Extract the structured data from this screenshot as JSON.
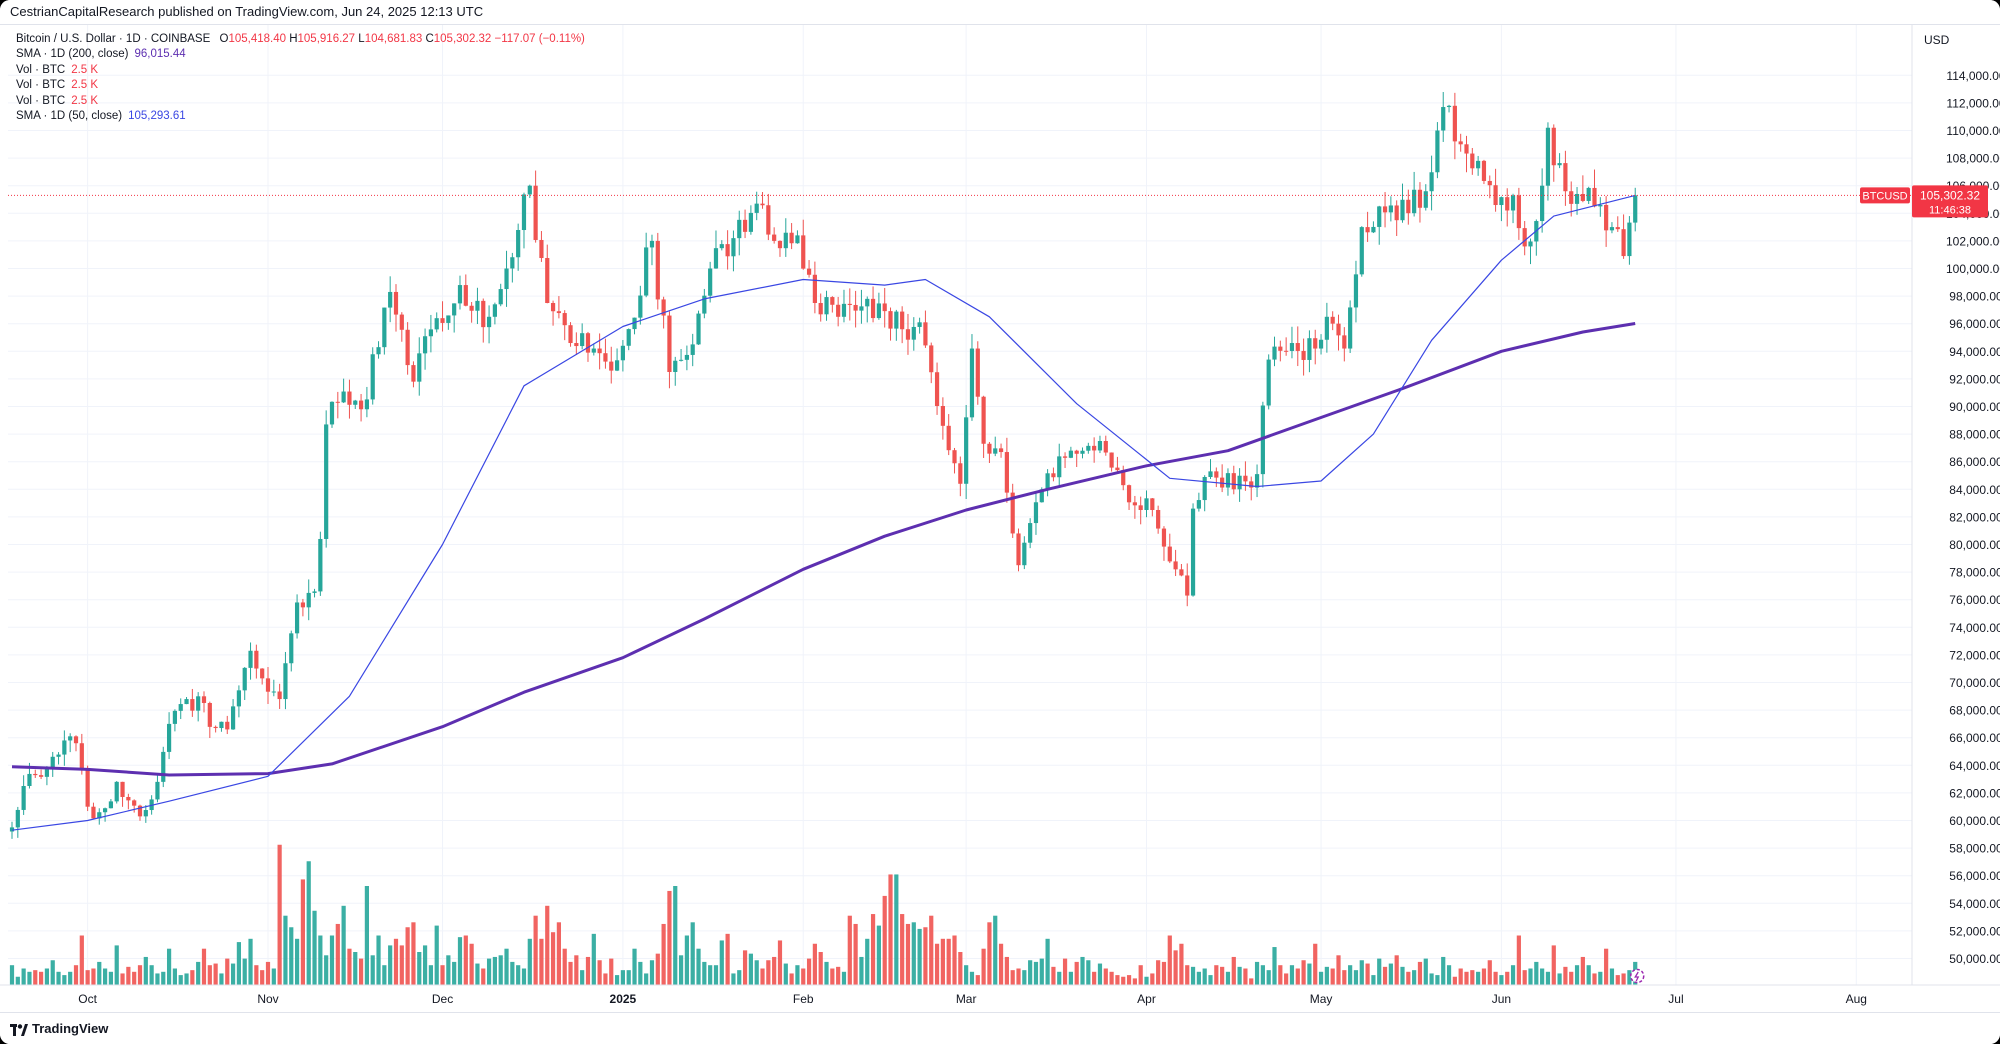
{
  "header": {
    "published": "CestrianCapitalResearch published on TradingView.com, Jun 24, 2025 12:13 UTC"
  },
  "legend": {
    "symbol_line": "Bitcoin / U.S. Dollar · 1D · COINBASE",
    "ohlc": {
      "o_label": "O",
      "o": "105,418.40",
      "h_label": "H",
      "h": "105,916.27",
      "l_label": "L",
      "l": "104,681.83",
      "c_label": "C",
      "c": "105,302.32",
      "change": "−117.07 (−0.11%)"
    },
    "sma200": {
      "label": "SMA · 1D (200, close)",
      "value": "96,015.44"
    },
    "vol_rows": [
      {
        "label": "Vol · BTC",
        "value": "2.5 K"
      },
      {
        "label": "Vol · BTC",
        "value": "2.5 K"
      },
      {
        "label": "Vol · BTC",
        "value": "2.5 K"
      }
    ],
    "sma50": {
      "label": "SMA · 1D (50, close)",
      "value": "105,293.61"
    }
  },
  "price_axis": {
    "currency": "USD",
    "last_symbol": "BTCUSD",
    "last_price": "105,302.32",
    "countdown": "11:46:38"
  },
  "footer": {
    "brand": "TradingView"
  },
  "colors": {
    "up": "#26a69a",
    "down": "#ef5350",
    "sma200": "#5d2fb0",
    "sma50": "#3a47e3",
    "grid": "#f0f3fa",
    "price_line": "#f23645"
  },
  "chart_data": {
    "type": "candlestick",
    "interval": "1D",
    "y_unit": "USD",
    "ylim": [
      48000,
      116000
    ],
    "y_ticks": [
      "50,000.00",
      "52,000.00",
      "54,000.00",
      "56,000.00",
      "58,000.00",
      "60,000.00",
      "62,000.00",
      "64,000.00",
      "66,000.00",
      "68,000.00",
      "70,000.00",
      "72,000.00",
      "74,000.00",
      "76,000.00",
      "78,000.00",
      "80,000.00",
      "82,000.00",
      "84,000.00",
      "86,000.00",
      "88,000.00",
      "90,000.00",
      "92,000.00",
      "94,000.00",
      "96,000.00",
      "98,000.00",
      "100,000.00",
      "102,000.00",
      "104,000.00",
      "106,000.00",
      "108,000.00",
      "110,000.00",
      "112,000.00",
      "114,000.00"
    ],
    "x_ticks": [
      {
        "label": "Oct",
        "date": "2024-10-01"
      },
      {
        "label": "Nov",
        "date": "2024-11-01"
      },
      {
        "label": "Dec",
        "date": "2024-12-01"
      },
      {
        "label": "2025",
        "date": "2025-01-01",
        "bold": true
      },
      {
        "label": "Feb",
        "date": "2025-02-01"
      },
      {
        "label": "Mar",
        "date": "2025-03-01"
      },
      {
        "label": "Apr",
        "date": "2025-04-01"
      },
      {
        "label": "May",
        "date": "2025-05-01"
      },
      {
        "label": "Jun",
        "date": "2025-06-01"
      },
      {
        "label": "Jul",
        "date": "2025-07-01"
      },
      {
        "label": "Aug",
        "date": "2025-08-01"
      }
    ],
    "start_date": "2024-09-18",
    "last_price": 105302.32,
    "close_path": [
      [
        "2024-09-18",
        59500
      ],
      [
        "2024-09-20",
        62500
      ],
      [
        "2024-09-24",
        63800
      ],
      [
        "2024-09-27",
        65800
      ],
      [
        "2024-09-29",
        65600
      ],
      [
        "2024-10-01",
        61000
      ],
      [
        "2024-10-03",
        60600
      ],
      [
        "2024-10-06",
        62800
      ],
      [
        "2024-10-10",
        60300
      ],
      [
        "2024-10-13",
        62800
      ],
      [
        "2024-10-15",
        67000
      ],
      [
        "2024-10-20",
        69000
      ],
      [
        "2024-10-23",
        66700
      ],
      [
        "2024-10-25",
        66600
      ],
      [
        "2024-10-29",
        72300
      ],
      [
        "2024-10-31",
        70300
      ],
      [
        "2024-11-03",
        68800
      ],
      [
        "2024-11-06",
        75800
      ],
      [
        "2024-11-09",
        76600
      ],
      [
        "2024-11-10",
        80400
      ],
      [
        "2024-11-11",
        88700
      ],
      [
        "2024-11-13",
        90300
      ],
      [
        "2024-11-17",
        89800
      ],
      [
        "2024-11-20",
        94300
      ],
      [
        "2024-11-22",
        98300
      ],
      [
        "2024-11-25",
        93000
      ],
      [
        "2024-11-26",
        91800
      ],
      [
        "2024-11-30",
        96400
      ],
      [
        "2024-12-04",
        98800
      ],
      [
        "2024-12-05",
        97300
      ],
      [
        "2024-12-09",
        96500
      ],
      [
        "2024-12-12",
        100000
      ],
      [
        "2024-12-16",
        106000
      ],
      [
        "2024-12-19",
        97500
      ],
      [
        "2024-12-23",
        94600
      ],
      [
        "2024-12-27",
        94200
      ],
      [
        "2024-12-30",
        92600
      ],
      [
        "2025-01-01",
        94400
      ],
      [
        "2025-01-06",
        102000
      ],
      [
        "2025-01-09",
        92500
      ],
      [
        "2025-01-13",
        94500
      ],
      [
        "2025-01-16",
        100000
      ],
      [
        "2025-01-20",
        102200
      ],
      [
        "2025-01-24",
        104700
      ],
      [
        "2025-01-27",
        102000
      ],
      [
        "2025-01-31",
        102400
      ],
      [
        "2025-02-03",
        97500
      ],
      [
        "2025-02-07",
        96500
      ],
      [
        "2025-02-12",
        97800
      ],
      [
        "2025-02-18",
        95600
      ],
      [
        "2025-02-21",
        96100
      ],
      [
        "2025-02-25",
        88600
      ],
      [
        "2025-02-28",
        84400
      ],
      [
        "2025-03-02",
        94200
      ],
      [
        "2025-03-04",
        87300
      ],
      [
        "2025-03-07",
        86700
      ],
      [
        "2025-03-10",
        78500
      ],
      [
        "2025-03-14",
        84000
      ],
      [
        "2025-03-19",
        86800
      ],
      [
        "2025-03-24",
        87500
      ],
      [
        "2025-03-28",
        84300
      ],
      [
        "2025-03-31",
        82500
      ],
      [
        "2025-04-02",
        82500
      ],
      [
        "2025-04-06",
        78200
      ],
      [
        "2025-04-08",
        76300
      ],
      [
        "2025-04-09",
        82600
      ],
      [
        "2025-04-12",
        85300
      ],
      [
        "2025-04-16",
        84000
      ],
      [
        "2025-04-20",
        85100
      ],
      [
        "2025-04-22",
        93400
      ],
      [
        "2025-04-26",
        94600
      ],
      [
        "2025-04-30",
        94200
      ],
      [
        "2025-05-02",
        96500
      ],
      [
        "2025-05-05",
        94200
      ],
      [
        "2025-05-08",
        103000
      ],
      [
        "2025-05-11",
        104500
      ],
      [
        "2025-05-14",
        103500
      ],
      [
        "2025-05-19",
        105600
      ],
      [
        "2025-05-21",
        110000
      ],
      [
        "2025-05-22",
        111700
      ],
      [
        "2025-05-25",
        109000
      ],
      [
        "2025-05-28",
        107800
      ],
      [
        "2025-05-31",
        104600
      ],
      [
        "2025-06-03",
        105300
      ],
      [
        "2025-06-05",
        101600
      ],
      [
        "2025-06-08",
        106000
      ],
      [
        "2025-06-09",
        110200
      ],
      [
        "2025-06-12",
        105600
      ],
      [
        "2025-06-14",
        105400
      ],
      [
        "2025-06-17",
        104500
      ],
      [
        "2025-06-20",
        103000
      ],
      [
        "2025-06-22",
        100900
      ],
      [
        "2025-06-24",
        105302
      ]
    ],
    "sma200_path": [
      [
        "2024-09-18",
        63900
      ],
      [
        "2024-10-01",
        63700
      ],
      [
        "2024-10-15",
        63300
      ],
      [
        "2024-11-01",
        63400
      ],
      [
        "2024-11-12",
        64100
      ],
      [
        "2024-12-01",
        66800
      ],
      [
        "2024-12-15",
        69300
      ],
      [
        "2025-01-01",
        71800
      ],
      [
        "2025-01-15",
        74600
      ],
      [
        "2025-02-01",
        78200
      ],
      [
        "2025-02-15",
        80600
      ],
      [
        "2025-03-01",
        82500
      ],
      [
        "2025-03-15",
        84000
      ],
      [
        "2025-04-01",
        85700
      ],
      [
        "2025-04-15",
        86800
      ],
      [
        "2025-05-01",
        89200
      ],
      [
        "2025-05-15",
        91300
      ],
      [
        "2025-06-01",
        94000
      ],
      [
        "2025-06-15",
        95400
      ],
      [
        "2025-06-24",
        96015
      ]
    ],
    "sma50_path": [
      [
        "2024-09-18",
        59300
      ],
      [
        "2024-10-01",
        60000
      ],
      [
        "2024-10-15",
        61400
      ],
      [
        "2024-11-01",
        63200
      ],
      [
        "2024-11-15",
        69000
      ],
      [
        "2024-12-01",
        80000
      ],
      [
        "2024-12-15",
        91500
      ],
      [
        "2025-01-01",
        95800
      ],
      [
        "2025-01-15",
        97800
      ],
      [
        "2025-02-01",
        99200
      ],
      [
        "2025-02-15",
        98800
      ],
      [
        "2025-02-22",
        99200
      ],
      [
        "2025-03-05",
        96500
      ],
      [
        "2025-03-20",
        90200
      ],
      [
        "2025-04-05",
        84800
      ],
      [
        "2025-04-20",
        84200
      ],
      [
        "2025-05-01",
        84600
      ],
      [
        "2025-05-10",
        88000
      ],
      [
        "2025-05-20",
        94800
      ],
      [
        "2025-06-01",
        100600
      ],
      [
        "2025-06-10",
        103800
      ],
      [
        "2025-06-24",
        105294
      ]
    ],
    "volume": {
      "scale_max": 5000,
      "levels_pct_of_max": [
        12,
        5,
        10,
        8,
        9,
        8,
        10,
        15,
        8,
        6,
        8,
        12,
        30,
        9,
        10,
        14,
        10,
        8,
        24,
        7,
        11,
        8,
        12,
        17,
        12,
        7,
        8,
        22,
        10,
        6,
        7,
        9,
        14,
        22,
        12,
        13,
        7,
        16,
        13,
        26,
        16,
        28,
        12,
        9,
        14,
        10,
        85,
        42,
        35,
        28,
        64,
        75,
        45,
        30,
        18,
        30,
        37,
        48,
        22,
        20,
        16,
        60,
        18,
        30,
        12,
        24,
        28,
        24,
        35,
        38,
        20,
        24,
        12,
        36,
        12,
        18,
        14,
        29,
        30,
        25,
        13,
        10,
        16,
        17,
        18,
        22,
        14,
        12,
        10,
        28,
        42,
        28,
        48,
        32,
        38,
        22,
        14,
        18,
        9,
        17,
        31,
        15,
        7,
        16,
        6,
        9,
        9,
        22,
        14,
        7,
        15,
        19,
        37,
        57,
        60,
        18,
        30,
        38,
        22,
        14,
        12,
        12,
        27,
        31,
        7,
        9,
        21,
        19,
        15,
        10,
        15,
        17,
        27,
        13,
        7,
        12,
        10,
        16,
        25,
        20,
        14,
        10,
        11,
        8,
        42,
        37,
        17,
        28,
        43,
        36,
        54,
        67,
        67,
        43,
        37,
        38,
        34,
        35,
        42,
        25,
        28,
        28,
        30,
        20,
        12,
        8,
        6,
        22,
        38,
        42,
        25,
        17,
        9,
        10,
        9,
        15,
        14,
        16,
        28,
        11,
        8,
        16,
        8,
        14,
        17,
        15,
        8,
        13,
        10,
        8,
        6,
        5,
        6,
        4,
        12,
        5,
        7,
        15,
        14,
        30,
        21,
        25,
        12,
        11,
        8,
        10,
        6,
        12,
        11,
        8,
        17,
        11,
        10,
        4,
        14,
        12,
        9,
        23,
        12,
        7,
        12,
        10,
        15,
        13,
        25,
        8,
        11,
        10,
        18,
        9,
        12,
        9,
        15,
        13,
        6,
        16,
        11,
        13,
        18,
        11,
        8,
        9,
        14,
        16,
        7,
        6,
        17
      ]
    }
  }
}
